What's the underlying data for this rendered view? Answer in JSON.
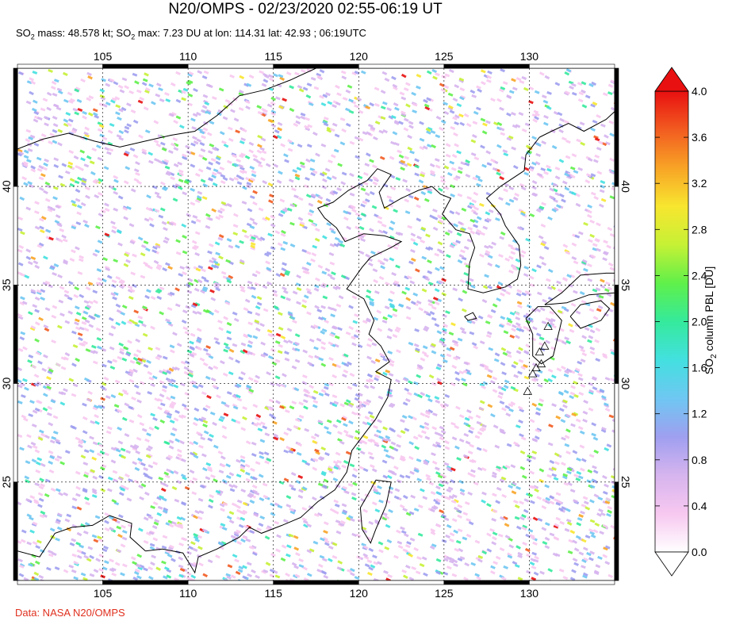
{
  "title": "N20/OMPS - 02/23/2020 02:55-06:19 UT",
  "subtitle": {
    "p1": "SO",
    "s1": "2",
    "p2": " mass: 48.578 kt; SO",
    "s2": "2",
    "p3": " max: 7.23 DU at lon: 114.31 lat: 42.93 ; 06:19UTC"
  },
  "credit": "Data: NASA N20/OMPS",
  "map": {
    "lon_range": [
      100,
      135
    ],
    "lat_range": [
      20,
      46
    ],
    "lon_ticks": [
      "105",
      "110",
      "115",
      "120",
      "125",
      "130"
    ],
    "lat_ticks": [
      "40",
      "35",
      "30",
      "25"
    ],
    "grid": "dashed"
  },
  "colorbar": {
    "label_pre": "SO",
    "label_sub": "2",
    "label_post": " column PBL [DU]",
    "ticks": [
      "4.0",
      "3.6",
      "3.2",
      "2.8",
      "2.4",
      "2.0",
      "1.6",
      "1.2",
      "0.8",
      "0.4",
      "0.0"
    ],
    "range": [
      0,
      4
    ],
    "colors": [
      "#ffffff",
      "#f7c8f0",
      "#d6b4ee",
      "#9f9ff0",
      "#6fc7f2",
      "#43e0e0",
      "#35ea9c",
      "#5ff04a",
      "#c6f135",
      "#f8e62f",
      "#f8a426",
      "#f25b20",
      "#e81010"
    ]
  },
  "volcano_markers": 7
}
